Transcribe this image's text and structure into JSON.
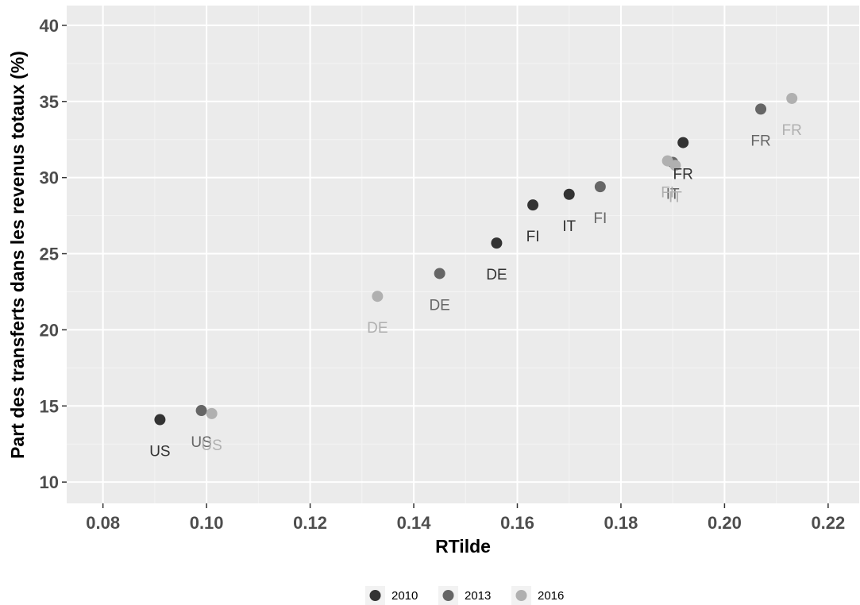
{
  "chart_data": {
    "type": "scatter",
    "title": "",
    "xlabel": "RTilde",
    "ylabel": "Part des transferts dans les revenus totaux (%)",
    "xlim": [
      0.073,
      0.226
    ],
    "ylim": [
      8.6,
      41.3
    ],
    "xticks": [
      0.08,
      0.1,
      0.12,
      0.14,
      0.16,
      0.18,
      0.2,
      0.22
    ],
    "xtick_labels": [
      "0.08",
      "0.10",
      "0.12",
      "0.14",
      "0.16",
      "0.18",
      "0.20",
      "0.22"
    ],
    "yticks": [
      10,
      15,
      20,
      25,
      30,
      35,
      40
    ],
    "ytick_labels": [
      "10",
      "15",
      "20",
      "25",
      "30",
      "35",
      "40"
    ],
    "grid": true,
    "legend_position": "bottom",
    "series": [
      {
        "name": "2010",
        "color": "#333333",
        "points": [
          {
            "label": "US",
            "x": 0.091,
            "y": 14.1
          },
          {
            "label": "DE",
            "x": 0.156,
            "y": 25.7
          },
          {
            "label": "FI",
            "x": 0.163,
            "y": 28.2
          },
          {
            "label": "IT",
            "x": 0.17,
            "y": 28.9
          },
          {
            "label": "FR",
            "x": 0.192,
            "y": 32.3
          }
        ]
      },
      {
        "name": "2013",
        "color": "#666666",
        "points": [
          {
            "label": "US",
            "x": 0.099,
            "y": 14.7
          },
          {
            "label": "DE",
            "x": 0.145,
            "y": 23.7
          },
          {
            "label": "FI",
            "x": 0.176,
            "y": 29.4
          },
          {
            "label": "IT",
            "x": 0.19,
            "y": 31.0
          },
          {
            "label": "FR",
            "x": 0.207,
            "y": 34.5
          }
        ]
      },
      {
        "name": "2016",
        "color": "#b0b0b0",
        "points": [
          {
            "label": "US",
            "x": 0.101,
            "y": 14.5
          },
          {
            "label": "DE",
            "x": 0.133,
            "y": 22.2
          },
          {
            "label": "FI",
            "x": 0.189,
            "y": 31.1
          },
          {
            "label": "IT",
            "x": 0.1905,
            "y": 30.8
          },
          {
            "label": "FR",
            "x": 0.213,
            "y": 35.2
          }
        ]
      }
    ]
  },
  "colors": {
    "panel_background": "#ebebeb",
    "grid_major": "#ffffff",
    "grid_minor": "#f4f4f4"
  }
}
